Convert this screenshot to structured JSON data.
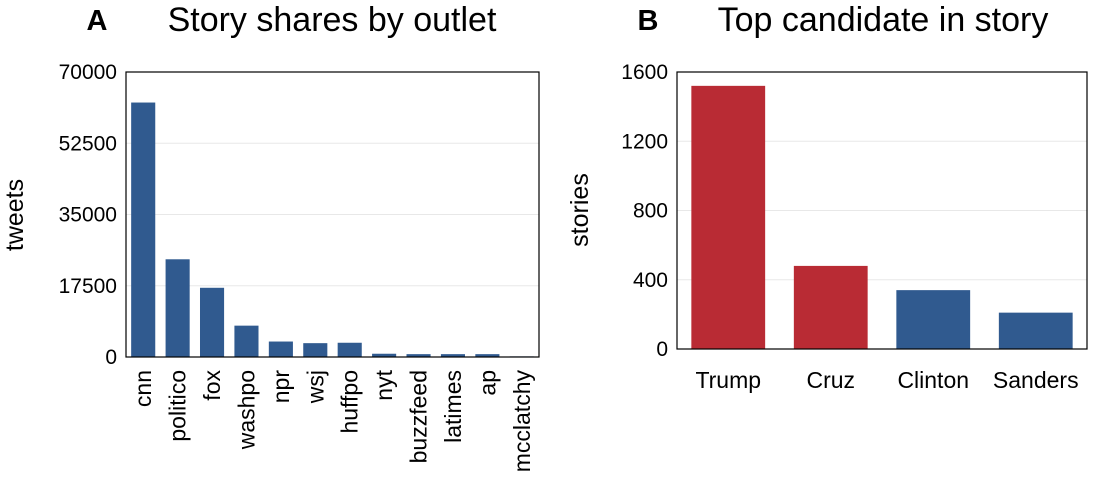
{
  "chart_data": [
    {
      "type": "bar",
      "panel": "A",
      "title": "Story shares by outlet",
      "xlabel": "",
      "ylabel": "tweets",
      "ylim": [
        0,
        70000
      ],
      "yticks": [
        "0",
        "17500",
        "35000",
        "52500",
        "70000"
      ],
      "grid": true,
      "categories": [
        "cnn",
        "politico",
        "fox",
        "washpo",
        "npr",
        "wsj",
        "huffpo",
        "nyt",
        "buzzfeed",
        "latimes",
        "ap",
        "mcclatchy"
      ],
      "values": [
        62500,
        24000,
        17000,
        7700,
        3800,
        3400,
        3500,
        800,
        700,
        700,
        700,
        150
      ],
      "colors": [
        "#305a8f",
        "#305a8f",
        "#305a8f",
        "#305a8f",
        "#305a8f",
        "#305a8f",
        "#305a8f",
        "#305a8f",
        "#305a8f",
        "#305a8f",
        "#305a8f",
        "#305a8f"
      ]
    },
    {
      "type": "bar",
      "panel": "B",
      "title": "Top candidate in story",
      "xlabel": "",
      "ylabel": "stories",
      "ylim": [
        0,
        1600
      ],
      "yticks": [
        "0",
        "400",
        "800",
        "1200",
        "1600"
      ],
      "grid": true,
      "categories": [
        "Trump",
        "Cruz",
        "Clinton",
        "Sanders"
      ],
      "values": [
        1520,
        480,
        340,
        210
      ],
      "colors": [
        "#b92b34",
        "#b92b34",
        "#305a8f",
        "#305a8f"
      ]
    }
  ]
}
